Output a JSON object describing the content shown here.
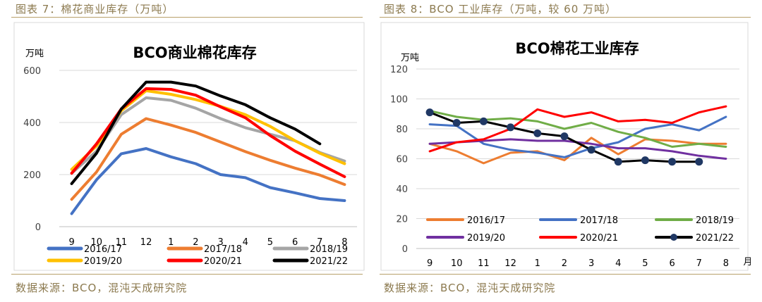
{
  "left_panel": {
    "header": "图表 7：棉花商业库存（万吨）",
    "source": "数据来源：BCO，混沌天成研究院"
  },
  "right_panel": {
    "header": "图表 8：BCO 工业库存（万吨，较 60 万吨）",
    "source": "数据来源：BCO，混沌天成研究院"
  },
  "colors": {
    "header_text": "#8c7a4f",
    "rule": "#b8a06a",
    "frame": "#d9d9d9"
  },
  "chart_data": [
    {
      "type": "line",
      "title": "BCO商业棉花库存",
      "ylabel": "万吨",
      "xlabel": "",
      "categories": [
        "9",
        "10",
        "11",
        "12",
        "1",
        "2",
        "3",
        "4",
        "5",
        "6",
        "7",
        "8"
      ],
      "ylim": [
        0,
        600
      ],
      "yticks": [
        0,
        200,
        400,
        600
      ],
      "grid": true,
      "legend_position": "bottom",
      "series": [
        {
          "name": "2016/17",
          "color": "#4472c4",
          "marker": false,
          "values": [
            50,
            180,
            280,
            300,
            268,
            242,
            200,
            188,
            150,
            130,
            108,
            100
          ]
        },
        {
          "name": "2017/18",
          "color": "#ed7d31",
          "marker": false,
          "values": [
            105,
            210,
            355,
            415,
            390,
            362,
            325,
            288,
            255,
            225,
            198,
            162
          ]
        },
        {
          "name": "2018/19",
          "color": "#a5a5a5",
          "marker": false,
          "values": [
            205,
            290,
            430,
            495,
            485,
            455,
            415,
            380,
            355,
            330,
            285,
            252
          ]
        },
        {
          "name": "2019/20",
          "color": "#ffc000",
          "marker": false,
          "values": [
            220,
            310,
            445,
            522,
            508,
            488,
            462,
            430,
            385,
            330,
            282,
            242
          ]
        },
        {
          "name": "2020/21",
          "color": "#ff0000",
          "marker": false,
          "values": [
            205,
            318,
            452,
            530,
            527,
            505,
            460,
            418,
            350,
            290,
            240,
            192
          ]
        },
        {
          "name": "2021/22",
          "color": "#000000",
          "marker": false,
          "values": [
            165,
            282,
            452,
            555,
            555,
            540,
            502,
            468,
            418,
            375,
            318,
            null
          ]
        }
      ]
    },
    {
      "type": "line",
      "title": "BCO棉花工业库存",
      "ylabel": "万吨",
      "xlabel": "月",
      "categories": [
        "9",
        "10",
        "11",
        "12",
        "1",
        "2",
        "3",
        "4",
        "5",
        "6",
        "7",
        "8"
      ],
      "ylim": [
        0,
        120
      ],
      "yticks": [
        0,
        20,
        40,
        60,
        80,
        100,
        120
      ],
      "grid": true,
      "legend_position": "bottom",
      "series": [
        {
          "name": "2016/17",
          "color": "#ed7d31",
          "marker": false,
          "values": [
            70,
            65,
            57,
            64,
            65,
            59,
            74,
            63,
            73,
            72,
            70,
            70
          ]
        },
        {
          "name": "2017/18",
          "color": "#4472c4",
          "marker": false,
          "values": [
            83,
            82,
            70,
            66,
            64,
            61,
            67,
            71,
            80,
            83,
            79,
            88
          ]
        },
        {
          "name": "2018/19",
          "color": "#70ad47",
          "marker": false,
          "values": [
            92,
            88,
            86,
            87,
            85,
            80,
            84,
            78,
            74,
            68,
            70,
            68
          ]
        },
        {
          "name": "2019/20",
          "color": "#7030a0",
          "marker": false,
          "values": [
            70,
            71,
            72,
            73,
            72,
            72,
            70,
            67,
            67,
            65,
            62,
            60
          ]
        },
        {
          "name": "2020/21",
          "color": "#ff0000",
          "marker": false,
          "values": [
            65,
            71,
            73,
            80,
            93,
            88,
            91,
            85,
            86,
            84,
            91,
            95
          ]
        },
        {
          "name": "2021/22",
          "color": "#000000",
          "marker": true,
          "marker_color": "#203864",
          "values": [
            91,
            84,
            85,
            81,
            77,
            75,
            66,
            58,
            59,
            58,
            58,
            null
          ]
        }
      ]
    }
  ]
}
